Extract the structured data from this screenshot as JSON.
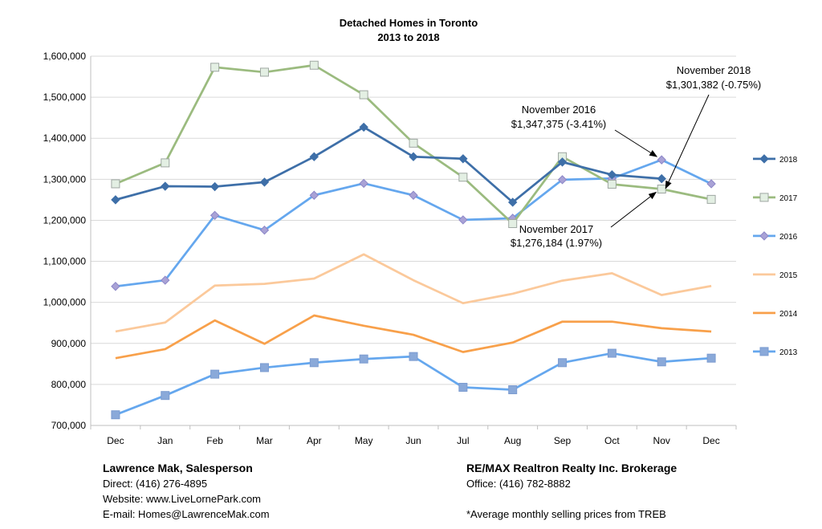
{
  "chart_data": {
    "type": "line",
    "title": "Detached Homes in Toronto",
    "subtitle": "2013 to 2018",
    "categories": [
      "Dec",
      "Jan",
      "Feb",
      "Mar",
      "Apr",
      "May",
      "Jun",
      "Jul",
      "Aug",
      "Sep",
      "Oct",
      "Nov",
      "Dec"
    ],
    "ylim": [
      700000,
      1600000
    ],
    "y_ticks": [
      700000,
      800000,
      900000,
      1000000,
      1100000,
      1200000,
      1300000,
      1400000,
      1500000,
      1600000
    ],
    "y_tick_labels": [
      "700,000",
      "800,000",
      "900,000",
      "1,000,000",
      "1,100,000",
      "1,200,000",
      "1,300,000",
      "1,400,000",
      "1,500,000",
      "1,600,000"
    ],
    "grid": true,
    "legend_position": "right",
    "series": [
      {
        "name": "2018",
        "color": "#3e6fa8",
        "marker": "diamond",
        "values": [
          1250000,
          1283000,
          1282000,
          1293000,
          1355000,
          1427000,
          1355000,
          1350000,
          1244000,
          1342000,
          1311000,
          1301382,
          null
        ]
      },
      {
        "name": "2017",
        "color": "#9bbb7f",
        "marker": "square-open",
        "values": [
          1289000,
          1340000,
          1573000,
          1561000,
          1578000,
          1506000,
          1388000,
          1305000,
          1192000,
          1355000,
          1288000,
          1276184,
          1251000
        ]
      },
      {
        "name": "2016",
        "color": "#65a7ee",
        "marker": "diamond-muted",
        "values": [
          1039000,
          1054000,
          1212000,
          1176000,
          1261000,
          1290000,
          1261000,
          1201000,
          1205000,
          1299000,
          1302000,
          1347375,
          1289000
        ]
      },
      {
        "name": "2015",
        "color": "#fbc99b",
        "marker": "none",
        "values": [
          929000,
          951000,
          1041000,
          1045000,
          1058000,
          1117000,
          1054000,
          998000,
          1021000,
          1053000,
          1071000,
          1018000,
          1040000
        ]
      },
      {
        "name": "2014",
        "color": "#f8a04a",
        "marker": "none",
        "values": [
          864000,
          886000,
          956000,
          899000,
          968000,
          943000,
          921000,
          879000,
          902000,
          953000,
          953000,
          937000,
          929000
        ]
      },
      {
        "name": "2013",
        "color": "#65a7ee",
        "marker": "square",
        "values": [
          726000,
          773000,
          825000,
          841000,
          853000,
          862000,
          868000,
          793000,
          787000,
          853000,
          876000,
          855000,
          864000
        ]
      }
    ],
    "annotations": [
      {
        "line1": "November 2018",
        "line2": "$1,301,382 (-0.75%)"
      },
      {
        "line1": "November 2016",
        "line2": "$1,347,375 (-3.41%)"
      },
      {
        "line1": "November 2017",
        "line2": "$1,276,184 (1.97%)"
      }
    ]
  },
  "footer": {
    "name": "Lawrence Mak, Salesperson",
    "direct": "Direct:  (416) 276-4895",
    "website": "Website:  www.LiveLornePark.com",
    "email": "E-mail:  Homes@LawrenceMak.com",
    "brokerage": "RE/MAX Realtron Realty Inc. Brokerage",
    "office": "Office: (416) 782-8882",
    "note": "*Average monthly selling prices from TREB"
  }
}
